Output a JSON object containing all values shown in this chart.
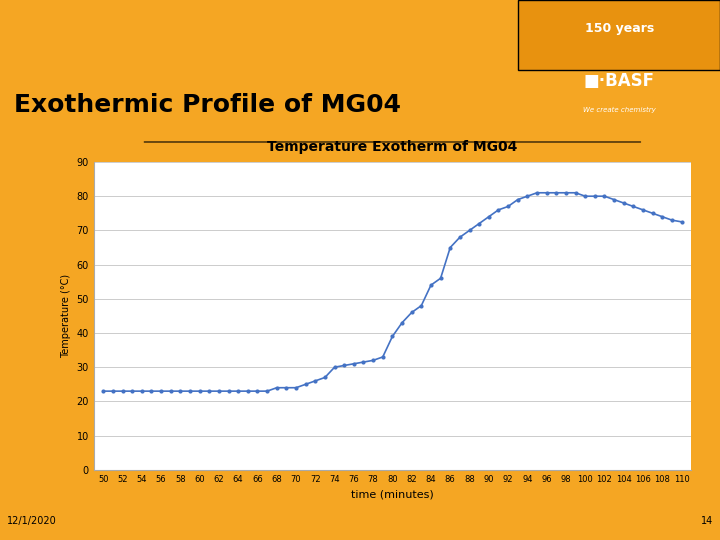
{
  "title": "Temperature Exotherm of MG04",
  "xlabel": "time (minutes)",
  "ylabel": "Temperature (°C)",
  "slide_title": "Exothermic Profile of MG04",
  "date": "12/1/2020",
  "page_num": "14",
  "years_text": "150 years",
  "header_bg": "#F5A623",
  "header_orange_box": "#E8920F",
  "chart_bg": "#FFFFFF",
  "slide_bg": "#F5A623",
  "line_color": "#4472C4",
  "marker_color": "#4472C4",
  "x": [
    50,
    51,
    52,
    53,
    54,
    55,
    56,
    57,
    58,
    59,
    60,
    61,
    62,
    63,
    64,
    65,
    66,
    67,
    68,
    69,
    70,
    71,
    72,
    73,
    74,
    75,
    76,
    77,
    78,
    79,
    80,
    81,
    82,
    83,
    84,
    85,
    86,
    87,
    88,
    89,
    90,
    91,
    92,
    93,
    94,
    95,
    96,
    97,
    98,
    99,
    100,
    101,
    102,
    103,
    104,
    105,
    106,
    107,
    108,
    109,
    110
  ],
  "y": [
    23,
    23,
    23,
    23,
    23,
    23,
    23,
    23,
    23,
    23,
    23,
    23,
    23,
    23,
    23,
    23,
    23,
    23,
    24,
    24,
    24,
    25,
    26,
    27,
    30,
    30.5,
    31,
    31.5,
    32,
    33,
    39,
    43,
    46,
    48,
    54,
    56,
    65,
    68,
    70,
    72,
    74,
    76,
    77,
    79,
    80,
    81,
    81,
    81,
    81,
    81,
    80,
    80,
    80,
    79,
    78,
    77,
    76,
    75,
    74,
    73,
    72.5
  ],
  "xlim": [
    49,
    111
  ],
  "ylim": [
    0,
    90
  ],
  "yticks": [
    0,
    10,
    20,
    30,
    40,
    50,
    60,
    70,
    80,
    90
  ],
  "xticks": [
    50,
    52,
    54,
    56,
    58,
    60,
    62,
    64,
    66,
    68,
    70,
    72,
    74,
    76,
    78,
    80,
    82,
    84,
    86,
    88,
    90,
    92,
    94,
    96,
    98,
    100,
    102,
    104,
    106,
    108,
    110
  ],
  "grid_color": "#cccccc",
  "spine_color": "#aaaaaa",
  "chart_border_color": "#dddddd"
}
